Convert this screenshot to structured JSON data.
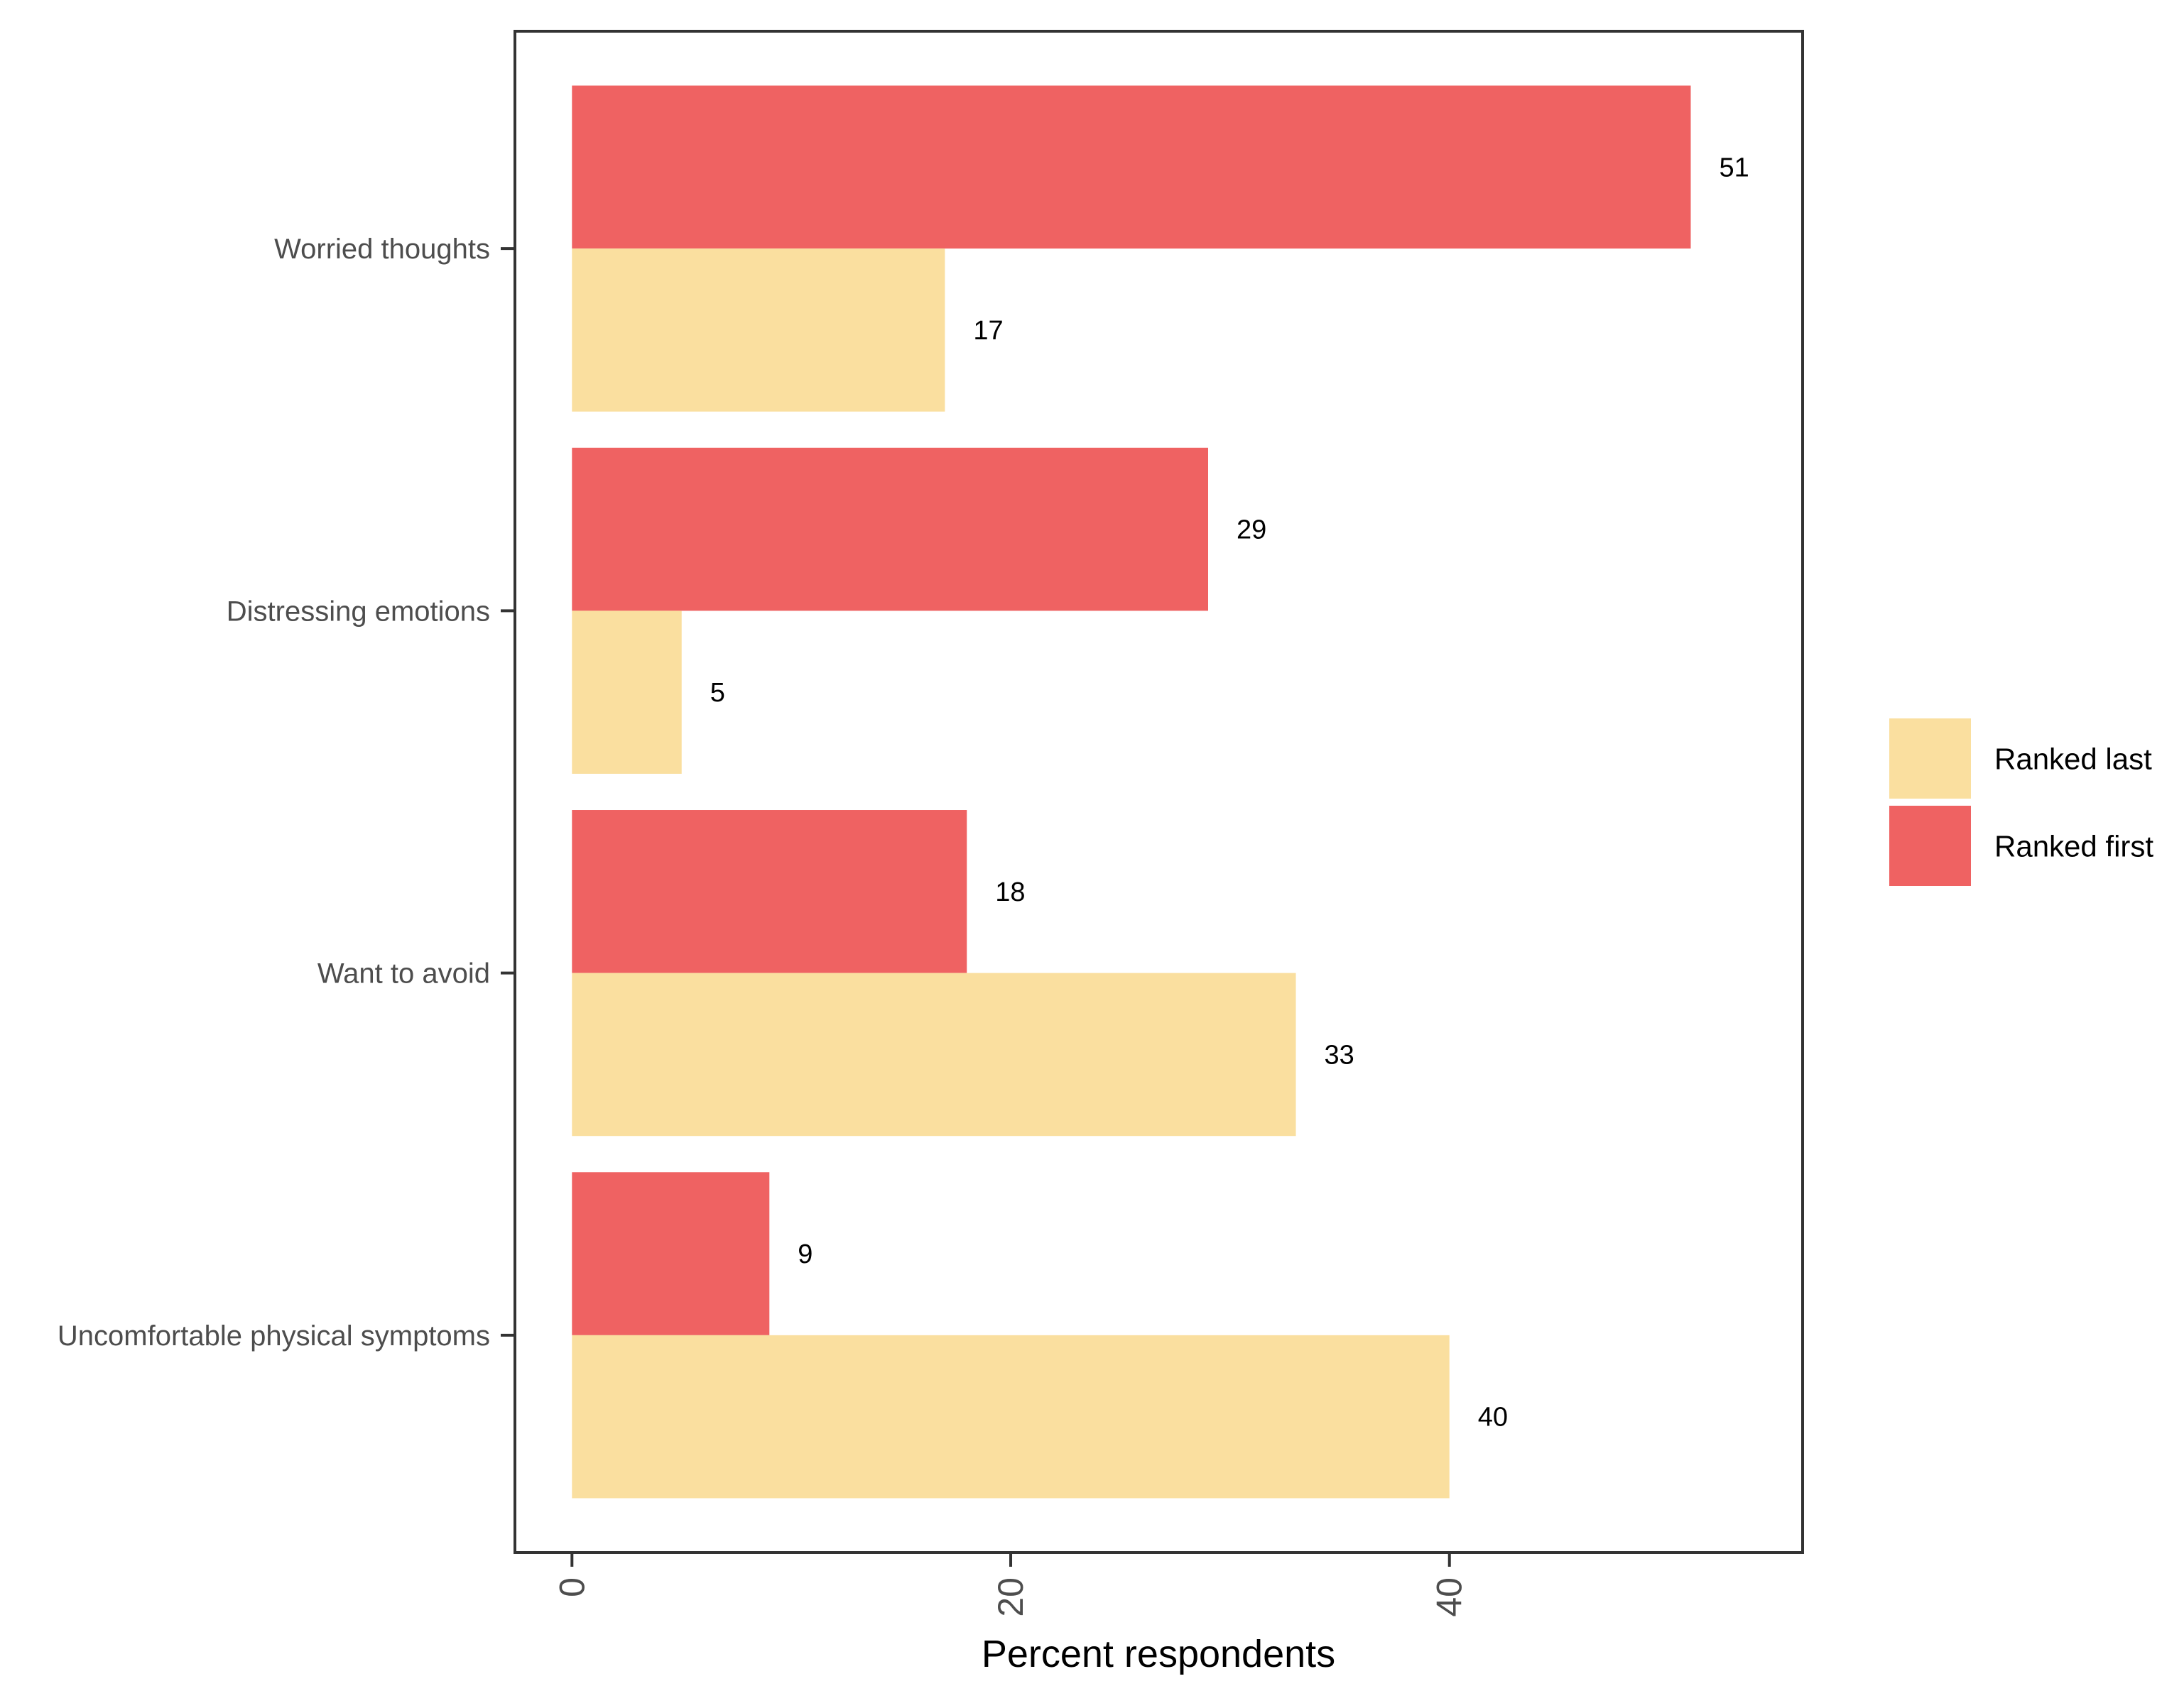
{
  "chart_data": {
    "type": "bar",
    "orientation": "horizontal",
    "categories": [
      "Worried thoughts",
      "Distressing emotions",
      "Want to avoid",
      "Uncomfortable physical symptoms"
    ],
    "series": [
      {
        "name": "Ranked first",
        "color": "#ef6262",
        "values": [
          51,
          29,
          18,
          9
        ],
        "labels": [
          "51",
          "29",
          "18",
          "9"
        ]
      },
      {
        "name": "Ranked last",
        "color": "#fadf9f",
        "values": [
          17,
          5,
          33,
          40
        ],
        "labels": [
          "17",
          "5",
          "33",
          "40"
        ]
      }
    ],
    "xlabel": "Percent respondents",
    "ylabel": "",
    "xlim": [
      -2.6,
      56.1
    ],
    "xticks": [
      0,
      20,
      40
    ],
    "xtick_labels": [
      "0",
      "20",
      "40"
    ],
    "grid": false,
    "legend": {
      "position": "right",
      "entries": [
        "Ranked last",
        "Ranked first"
      ]
    }
  }
}
